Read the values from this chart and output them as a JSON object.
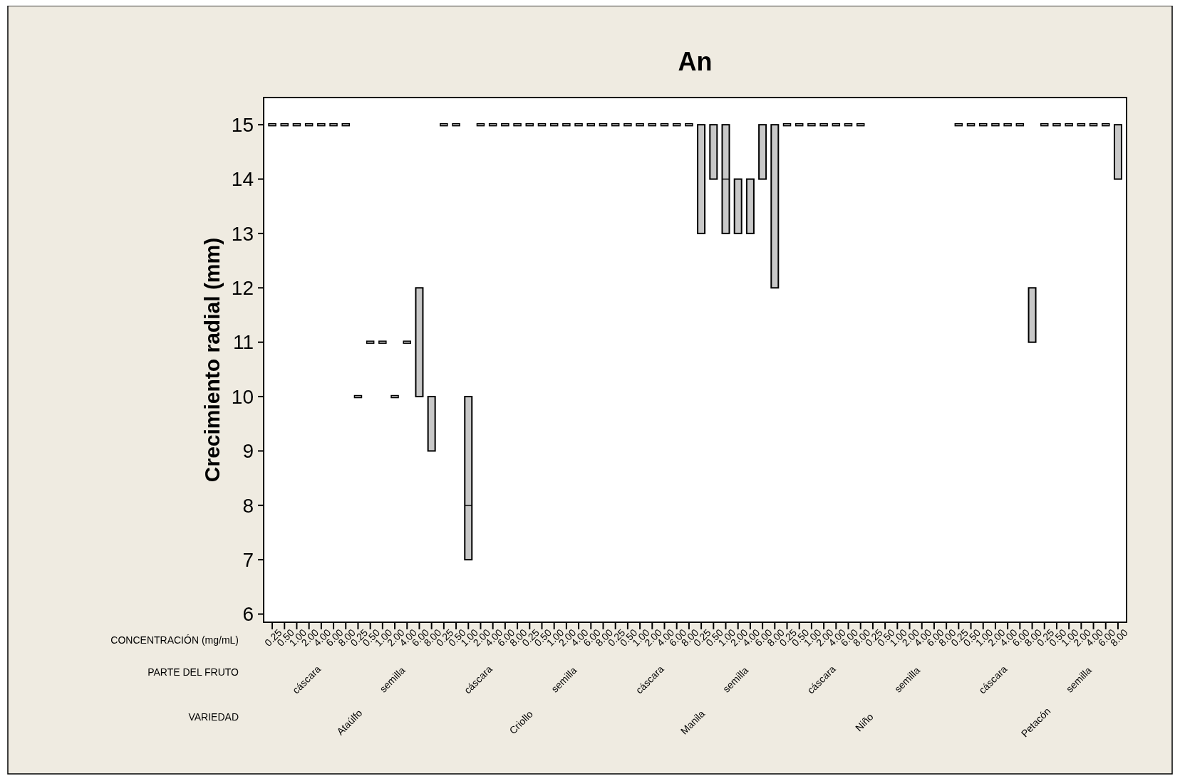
{
  "chart_data": {
    "type": "box",
    "title": "An",
    "ylabel": "Crecimiento radial (mm)",
    "ylim": [
      5.85,
      15.5
    ],
    "yticks": [
      6,
      7,
      8,
      9,
      10,
      11,
      12,
      13,
      14,
      15
    ],
    "grid": false,
    "legend": false,
    "color": "#c8c8c8",
    "categories": [
      "0.25",
      "0.50",
      "1.00",
      "2.00",
      "4.00",
      "6.00",
      "8.00",
      "0.25",
      "0.50",
      "1.00",
      "2.00",
      "4.00",
      "6.00",
      "8.00",
      "0.25",
      "0.50",
      "1.00",
      "2.00",
      "4.00",
      "6.00",
      "8.00",
      "0.25",
      "0.50",
      "1.00",
      "2.00",
      "4.00",
      "6.00",
      "8.00",
      "0.25",
      "0.50",
      "1.00",
      "2.00",
      "4.00",
      "6.00",
      "8.00",
      "0.25",
      "0.50",
      "1.00",
      "2.00",
      "4.00",
      "6.00",
      "8.00",
      "0.25",
      "0.50",
      "1.00",
      "2.00",
      "4.00",
      "6.00",
      "8.00",
      "0.25",
      "0.50",
      "1.00",
      "2.00",
      "4.00",
      "6.00",
      "8.00",
      "0.25",
      "0.50",
      "1.00",
      "2.00",
      "4.00",
      "6.00",
      "8.00",
      "0.25",
      "0.50",
      "1.00",
      "2.00",
      "4.00",
      "6.00",
      "8.00"
    ],
    "boxes": [
      {
        "low": 15,
        "q1": 15,
        "median": 15,
        "q3": 15,
        "high": 15
      },
      {
        "low": 15,
        "q1": 15,
        "median": 15,
        "q3": 15,
        "high": 15
      },
      {
        "low": 15,
        "q1": 15,
        "median": 15,
        "q3": 15,
        "high": 15
      },
      {
        "low": 15,
        "q1": 15,
        "median": 15,
        "q3": 15,
        "high": 15
      },
      {
        "low": 15,
        "q1": 15,
        "median": 15,
        "q3": 15,
        "high": 15
      },
      {
        "low": 15,
        "q1": 15,
        "median": 15,
        "q3": 15,
        "high": 15
      },
      {
        "low": 15,
        "q1": 15,
        "median": 15,
        "q3": 15,
        "high": 15
      },
      {
        "low": 10,
        "q1": 10,
        "median": 10,
        "q3": 10,
        "high": 10
      },
      {
        "low": 11,
        "q1": 11,
        "median": 11,
        "q3": 11,
        "high": 11
      },
      {
        "low": 11,
        "q1": 11,
        "median": 11,
        "q3": 11,
        "high": 11
      },
      {
        "low": 10,
        "q1": 10,
        "median": 10,
        "q3": 10,
        "high": 10
      },
      {
        "low": 11,
        "q1": 11,
        "median": 11,
        "q3": 11,
        "high": 11
      },
      {
        "low": 10,
        "q1": 10,
        "median": 12,
        "q3": 12,
        "high": 12
      },
      {
        "low": 9,
        "q1": 9,
        "median": 10,
        "q3": 10,
        "high": 10
      },
      {
        "low": 15,
        "q1": 15,
        "median": 15,
        "q3": 15,
        "high": 15
      },
      {
        "low": 15,
        "q1": 15,
        "median": 15,
        "q3": 15,
        "high": 15
      },
      {
        "low": 7,
        "q1": 7,
        "median": 8,
        "q3": 10,
        "high": 10
      },
      {
        "low": 15,
        "q1": 15,
        "median": 15,
        "q3": 15,
        "high": 15
      },
      {
        "low": 15,
        "q1": 15,
        "median": 15,
        "q3": 15,
        "high": 15
      },
      {
        "low": 15,
        "q1": 15,
        "median": 15,
        "q3": 15,
        "high": 15
      },
      {
        "low": 15,
        "q1": 15,
        "median": 15,
        "q3": 15,
        "high": 15
      },
      {
        "low": 15,
        "q1": 15,
        "median": 15,
        "q3": 15,
        "high": 15
      },
      {
        "low": 15,
        "q1": 15,
        "median": 15,
        "q3": 15,
        "high": 15
      },
      {
        "low": 15,
        "q1": 15,
        "median": 15,
        "q3": 15,
        "high": 15
      },
      {
        "low": 15,
        "q1": 15,
        "median": 15,
        "q3": 15,
        "high": 15
      },
      {
        "low": 15,
        "q1": 15,
        "median": 15,
        "q3": 15,
        "high": 15
      },
      {
        "low": 15,
        "q1": 15,
        "median": 15,
        "q3": 15,
        "high": 15
      },
      {
        "low": 15,
        "q1": 15,
        "median": 15,
        "q3": 15,
        "high": 15
      },
      {
        "low": 15,
        "q1": 15,
        "median": 15,
        "q3": 15,
        "high": 15
      },
      {
        "low": 15,
        "q1": 15,
        "median": 15,
        "q3": 15,
        "high": 15
      },
      {
        "low": 15,
        "q1": 15,
        "median": 15,
        "q3": 15,
        "high": 15
      },
      {
        "low": 15,
        "q1": 15,
        "median": 15,
        "q3": 15,
        "high": 15
      },
      {
        "low": 15,
        "q1": 15,
        "median": 15,
        "q3": 15,
        "high": 15
      },
      {
        "low": 15,
        "q1": 15,
        "median": 15,
        "q3": 15,
        "high": 15
      },
      {
        "low": 15,
        "q1": 15,
        "median": 15,
        "q3": 15,
        "high": 15
      },
      {
        "low": 13,
        "q1": 13,
        "median": 15,
        "q3": 15,
        "high": 15
      },
      {
        "low": 14,
        "q1": 14,
        "median": 15,
        "q3": 15,
        "high": 15
      },
      {
        "low": 13,
        "q1": 13,
        "median": 14,
        "q3": 15,
        "high": 15
      },
      {
        "low": 13,
        "q1": 13,
        "median": 14,
        "q3": 14,
        "high": 14
      },
      {
        "low": 13,
        "q1": 13,
        "median": 14,
        "q3": 14,
        "high": 14
      },
      {
        "low": 14,
        "q1": 14,
        "median": 15,
        "q3": 15,
        "high": 15
      },
      {
        "low": 12,
        "q1": 12,
        "median": 15,
        "q3": 15,
        "high": 15
      },
      {
        "low": 15,
        "q1": 15,
        "median": 15,
        "q3": 15,
        "high": 15
      },
      {
        "low": 15,
        "q1": 15,
        "median": 15,
        "q3": 15,
        "high": 15
      },
      {
        "low": 15,
        "q1": 15,
        "median": 15,
        "q3": 15,
        "high": 15
      },
      {
        "low": 15,
        "q1": 15,
        "median": 15,
        "q3": 15,
        "high": 15
      },
      {
        "low": 15,
        "q1": 15,
        "median": 15,
        "q3": 15,
        "high": 15
      },
      {
        "low": 15,
        "q1": 15,
        "median": 15,
        "q3": 15,
        "high": 15
      },
      {
        "low": 15,
        "q1": 15,
        "median": 15,
        "q3": 15,
        "high": 15
      },
      null,
      null,
      null,
      null,
      null,
      null,
      null,
      {
        "low": 15,
        "q1": 15,
        "median": 15,
        "q3": 15,
        "high": 15
      },
      {
        "low": 15,
        "q1": 15,
        "median": 15,
        "q3": 15,
        "high": 15
      },
      {
        "low": 15,
        "q1": 15,
        "median": 15,
        "q3": 15,
        "high": 15
      },
      {
        "low": 15,
        "q1": 15,
        "median": 15,
        "q3": 15,
        "high": 15
      },
      {
        "low": 15,
        "q1": 15,
        "median": 15,
        "q3": 15,
        "high": 15
      },
      {
        "low": 15,
        "q1": 15,
        "median": 15,
        "q3": 15,
        "high": 15
      },
      {
        "low": 11,
        "q1": 11,
        "median": 12,
        "q3": 12,
        "high": 12
      },
      {
        "low": 15,
        "q1": 15,
        "median": 15,
        "q3": 15,
        "high": 15
      },
      {
        "low": 15,
        "q1": 15,
        "median": 15,
        "q3": 15,
        "high": 15
      },
      {
        "low": 15,
        "q1": 15,
        "median": 15,
        "q3": 15,
        "high": 15
      },
      {
        "low": 15,
        "q1": 15,
        "median": 15,
        "q3": 15,
        "high": 15
      },
      {
        "low": 15,
        "q1": 15,
        "median": 15,
        "q3": 15,
        "high": 15
      },
      {
        "low": 15,
        "q1": 15,
        "median": 15,
        "q3": 15,
        "high": 15
      },
      {
        "low": 14,
        "q1": 14,
        "median": 15,
        "q3": 15,
        "high": 15
      }
    ],
    "annotations": [
      "CONCENTRACIÓN (mg/mL)",
      "PARTE DEL FRUTO",
      "VARIEDAD",
      "cáscara",
      "semilla",
      "cáscara",
      "semilla",
      "cáscara",
      "semilla",
      "cáscara",
      "semilla",
      "cáscara",
      "semilla",
      "Ataúlfo",
      "Criollo",
      "Manila",
      "Niño",
      "Petacón"
    ]
  }
}
